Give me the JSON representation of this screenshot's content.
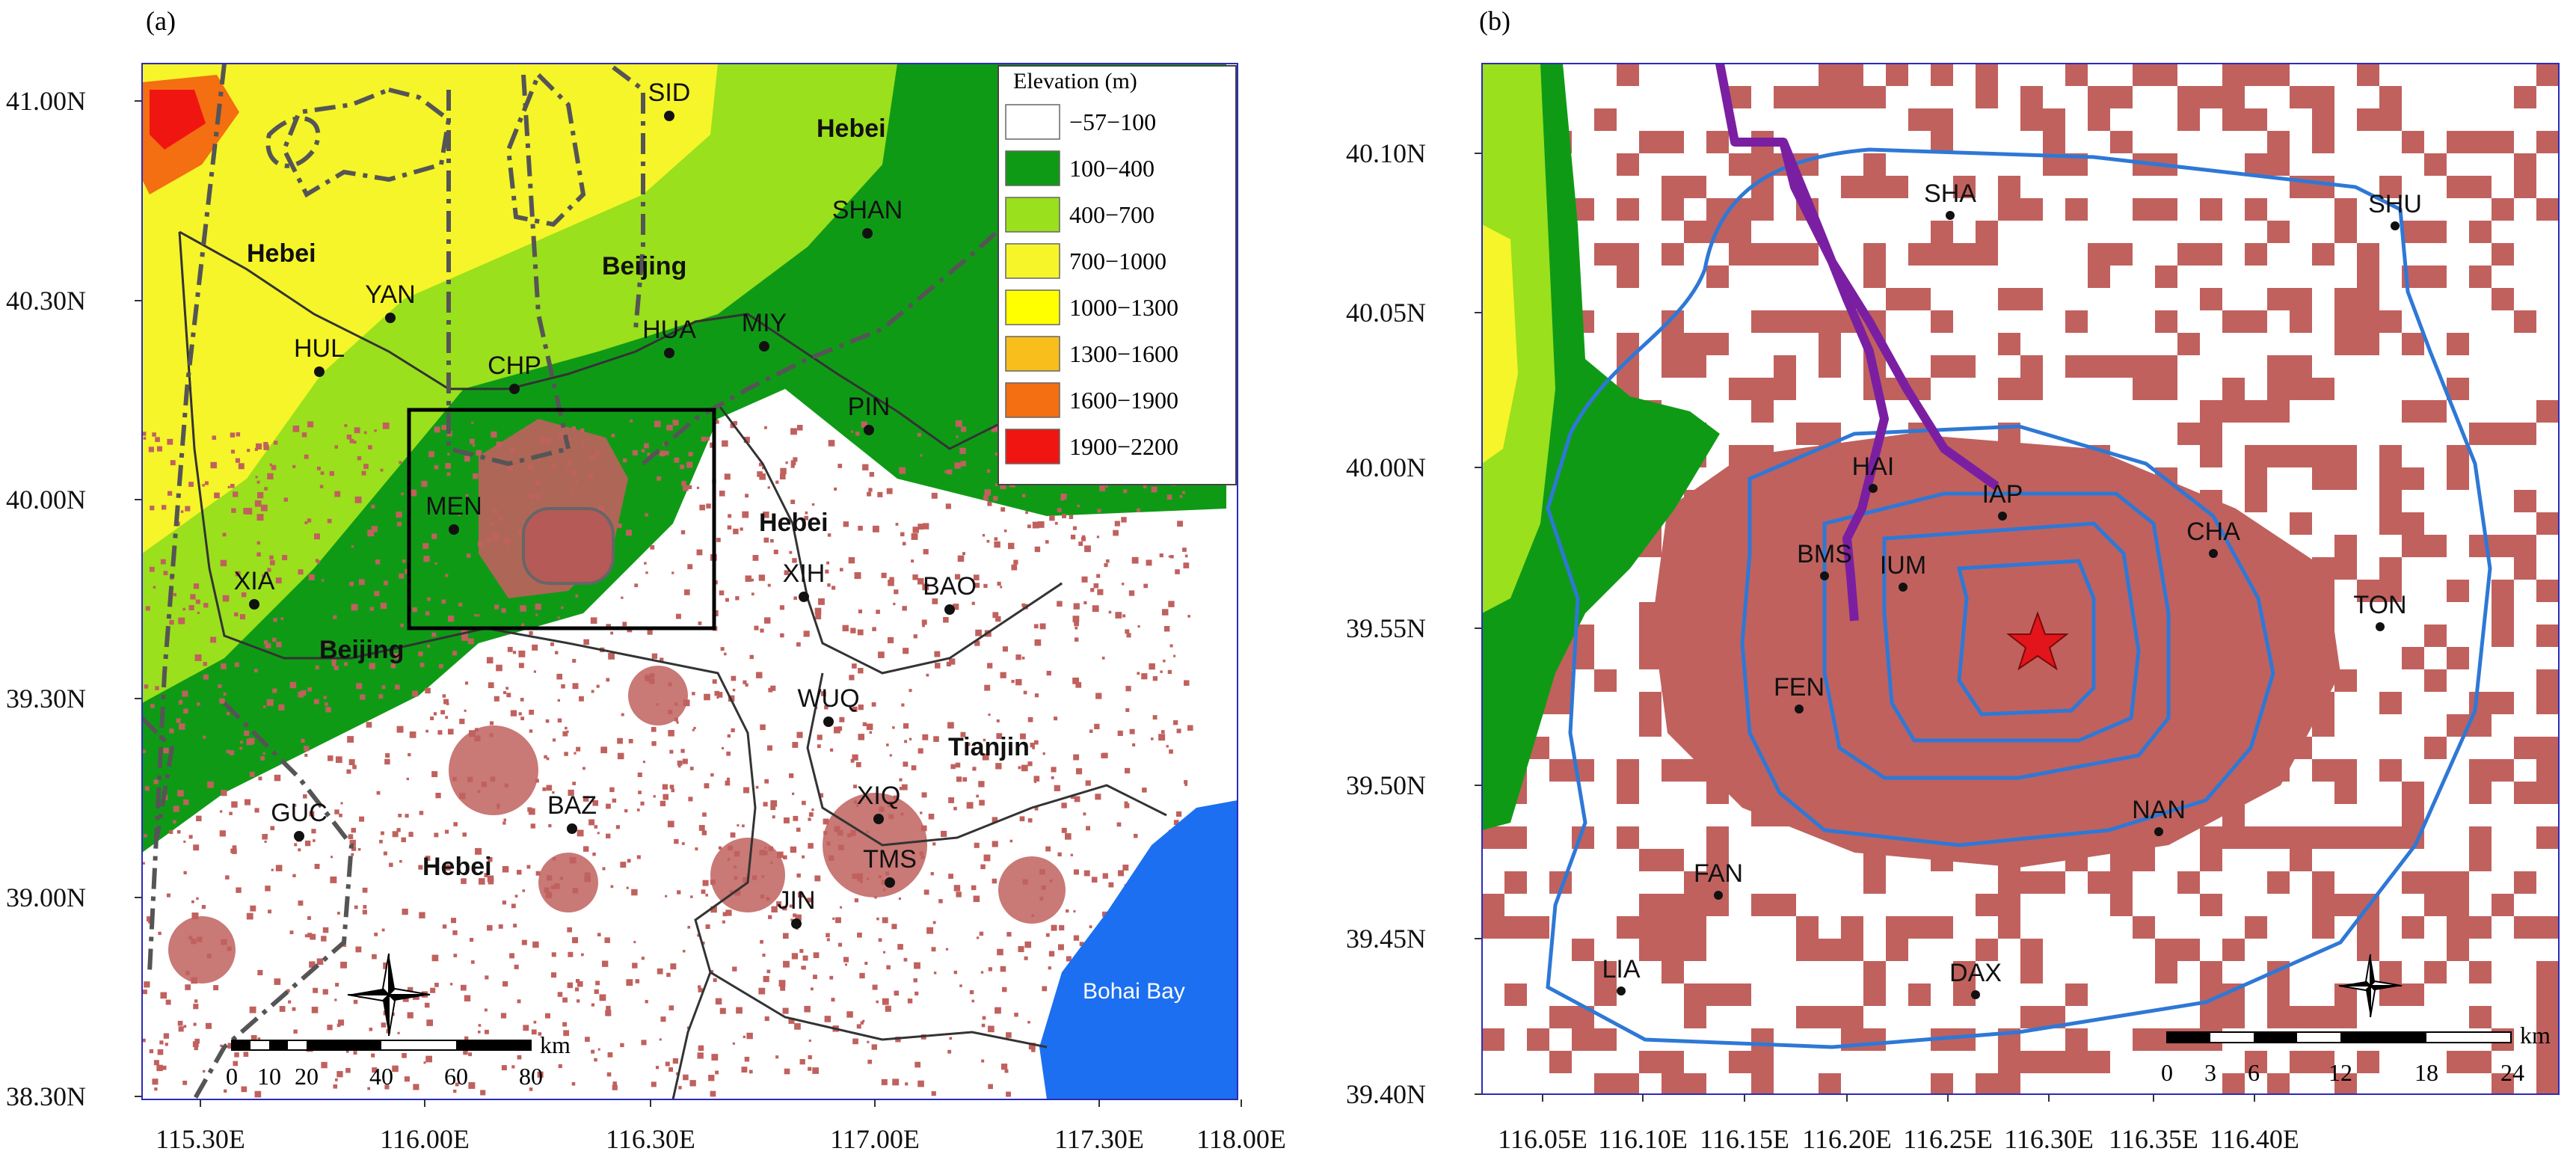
{
  "panel_a": {
    "label": "(a)",
    "y_ticks": [
      "41.00N",
      "40.30N",
      "40.00N",
      "39.30N",
      "39.00N",
      "38.30N"
    ],
    "x_ticks": [
      "115.30E",
      "116.00E",
      "116.30E",
      "117.00E",
      "117.30E",
      "118.00E"
    ],
    "legend": {
      "title": "Elevation (m)",
      "items": [
        {
          "label": "−57−100",
          "color": "#ffffff"
        },
        {
          "label": "100−400",
          "color": "#0f9a16"
        },
        {
          "label": "400−700",
          "color": "#9ae01c"
        },
        {
          "label": "700−1000",
          "color": "#f5f52a"
        },
        {
          "label": "1000−1300",
          "color": "#ffff00"
        },
        {
          "label": "1300−1600",
          "color": "#f7be1c"
        },
        {
          "label": "1600−1900",
          "color": "#f36f12"
        },
        {
          "label": "1900−2200",
          "color": "#f11511"
        }
      ]
    },
    "regions": [
      "Hebei",
      "Beijing",
      "Hebei",
      "Hebei",
      "Beijing",
      "Tianjin",
      "Hebei"
    ],
    "stations": [
      "SID",
      "SHAN",
      "YAN",
      "HUL",
      "CHP",
      "HUA",
      "MIY",
      "PIN",
      "MEN",
      "XIA",
      "XIH",
      "BAO",
      "WUQ",
      "XIQ",
      "TMS",
      "JIN",
      "BAZ",
      "GUC"
    ],
    "sea_label": "Bohai Bay",
    "scale": {
      "unit": "km",
      "ticks": [
        "0",
        "10",
        "20",
        "40",
        "60",
        "80"
      ]
    }
  },
  "panel_b": {
    "label": "(b)",
    "y_ticks": [
      "40.10N",
      "40.05N",
      "40.00N",
      "39.55N",
      "39.50N",
      "39.45N",
      "39.40N"
    ],
    "x_ticks": [
      "116.05E",
      "116.10E",
      "116.15E",
      "116.20E",
      "116.25E",
      "116.30E",
      "116.35E",
      "116.40E"
    ],
    "stations": [
      "SHA",
      "SHU",
      "HAI",
      "IAP",
      "CHA",
      "BMS",
      "IUM",
      "TON",
      "FEN",
      "NAN",
      "FAN",
      "LIA",
      "DAX"
    ],
    "scale": {
      "unit": "km",
      "ticks": [
        "0",
        "3",
        "6",
        "12",
        "18",
        "24"
      ]
    }
  },
  "colors": {
    "urban": "#c0615e",
    "ring_road": "#2e78d6",
    "track": "#7b1fa2",
    "sea": "#1c6ff0",
    "star": "#e3151a"
  }
}
